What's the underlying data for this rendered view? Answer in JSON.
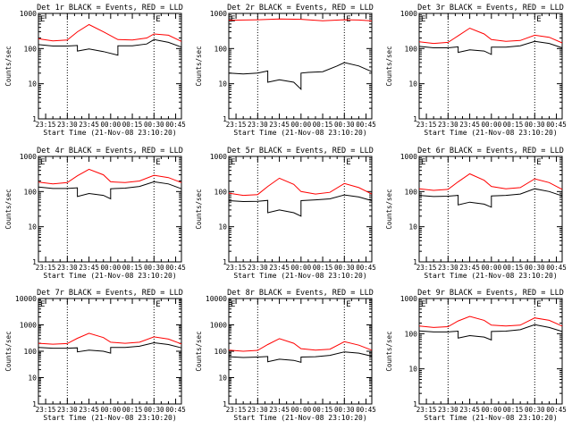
{
  "colors": {
    "events": "#000000",
    "lld": "#ff0000",
    "axes": "#000000",
    "background": "#ffffff"
  },
  "chart_data": [
    {
      "type": "line",
      "title": "Det 1r BLACK = Events, RED = LLD",
      "xlabel": "Start Time (21-Nov-08 23:10:20)",
      "ylabel": "Counts/sec",
      "yscale": "log",
      "ylim": [
        1,
        1000
      ],
      "ytick_labels": [
        "1",
        "10",
        "100",
        "1000"
      ],
      "xlim": [
        "23:10",
        "00:49"
      ],
      "xtick_labels": [
        "23:15",
        "23:30",
        "23:45",
        "00:00",
        "00:15",
        "00:30",
        "00:45"
      ],
      "markers": [
        {
          "time": "23:10",
          "label": "E"
        },
        {
          "time": "00:30",
          "label": "E"
        }
      ],
      "dotted_lines": [
        "23:30",
        "00:30"
      ],
      "series": [
        {
          "name": "Events",
          "x": [
            "23:10",
            "23:20",
            "23:30",
            "23:37",
            "23:37",
            "23:45",
            "23:55",
            "00:05",
            "00:05",
            "00:15",
            "00:25",
            "00:30",
            "00:40",
            "00:49"
          ],
          "y": [
            130,
            118,
            118,
            122,
            85,
            98,
            82,
            65,
            120,
            120,
            135,
            180,
            150,
            110
          ]
        },
        {
          "name": "LLD",
          "x": [
            "23:10",
            "23:20",
            "23:30",
            "23:37",
            "23:45",
            "23:55",
            "00:05",
            "00:15",
            "00:25",
            "00:30",
            "00:40",
            "00:49"
          ],
          "y": [
            190,
            165,
            175,
            300,
            480,
            300,
            180,
            175,
            200,
            260,
            240,
            160
          ]
        }
      ]
    },
    {
      "type": "line",
      "title": "Det 2r BLACK = Events, RED = LLD",
      "xlabel": "Start Time (21-Nov-08 23:10:20)",
      "ylabel": "Counts/sec",
      "yscale": "log",
      "ylim": [
        1,
        1000
      ],
      "ytick_labels": [
        "1",
        "10",
        "100",
        "1000"
      ],
      "xlim": [
        "23:10",
        "00:49"
      ],
      "xtick_labels": [
        "23:15",
        "23:30",
        "23:45",
        "00:00",
        "00:15",
        "00:30",
        "00:45"
      ],
      "markers": [
        {
          "time": "23:10",
          "label": "E"
        },
        {
          "time": "00:30",
          "label": "E"
        }
      ],
      "dotted_lines": [
        "23:30",
        "00:30"
      ],
      "series": [
        {
          "name": "Events",
          "x": [
            "23:10",
            "23:20",
            "23:30",
            "23:37",
            "23:37",
            "23:45",
            "23:55",
            "00:00",
            "00:00",
            "00:05",
            "00:15",
            "00:25",
            "00:30",
            "00:40",
            "00:49"
          ],
          "y": [
            20,
            19,
            20,
            23,
            11,
            13,
            11,
            7,
            20,
            21,
            22,
            32,
            40,
            32,
            22
          ]
        },
        {
          "name": "LLD",
          "x": [
            "23:10",
            "23:20",
            "23:30",
            "23:45",
            "00:00",
            "00:15",
            "00:30",
            "00:40",
            "00:49"
          ],
          "y": [
            640,
            650,
            660,
            690,
            680,
            620,
            660,
            650,
            610
          ]
        }
      ]
    },
    {
      "type": "line",
      "title": "Det 3r BLACK = Events, RED = LLD",
      "xlabel": "Start Time (21-Nov-08 23:10:20)",
      "ylabel": "Counts/sec",
      "yscale": "log",
      "ylim": [
        1,
        1000
      ],
      "ytick_labels": [
        "1",
        "10",
        "100",
        "1000"
      ],
      "xlim": [
        "23:10",
        "00:49"
      ],
      "xtick_labels": [
        "23:15",
        "23:30",
        "23:45",
        "00:00",
        "00:15",
        "00:30",
        "00:45"
      ],
      "markers": [
        {
          "time": "23:10",
          "label": "E"
        },
        {
          "time": "00:30",
          "label": "E"
        }
      ],
      "dotted_lines": [
        "23:30",
        "00:30"
      ],
      "series": [
        {
          "name": "Events",
          "x": [
            "23:10",
            "23:20",
            "23:30",
            "23:37",
            "23:37",
            "23:45",
            "23:55",
            "00:00",
            "00:00",
            "00:10",
            "00:20",
            "00:30",
            "00:40",
            "00:49"
          ],
          "y": [
            115,
            105,
            105,
            112,
            78,
            92,
            85,
            68,
            110,
            110,
            120,
            160,
            140,
            105
          ]
        },
        {
          "name": "LLD",
          "x": [
            "23:10",
            "23:20",
            "23:30",
            "23:37",
            "23:45",
            "23:55",
            "00:00",
            "00:10",
            "00:20",
            "00:30",
            "00:40",
            "00:49"
          ],
          "y": [
            155,
            140,
            150,
            230,
            380,
            260,
            180,
            160,
            170,
            240,
            210,
            145
          ]
        }
      ]
    },
    {
      "type": "line",
      "title": "Det 4r BLACK = Events, RED = LLD",
      "xlabel": "Start Time (21-Nov-08 23:10:20)",
      "ylabel": "Counts/sec",
      "yscale": "log",
      "ylim": [
        1,
        1000
      ],
      "ytick_labels": [
        "1",
        "10",
        "100",
        "1000"
      ],
      "xlim": [
        "23:10",
        "00:49"
      ],
      "xtick_labels": [
        "23:15",
        "23:30",
        "23:45",
        "00:00",
        "00:15",
        "00:30",
        "00:45"
      ],
      "markers": [
        {
          "time": "23:10",
          "label": "E"
        },
        {
          "time": "00:30",
          "label": "E"
        }
      ],
      "dotted_lines": [
        "23:30",
        "00:30"
      ],
      "series": [
        {
          "name": "Events",
          "x": [
            "23:10",
            "23:20",
            "23:30",
            "23:37",
            "23:37",
            "23:45",
            "23:55",
            "00:00",
            "00:00",
            "00:10",
            "00:20",
            "00:30",
            "00:40",
            "00:49"
          ],
          "y": [
            135,
            122,
            122,
            128,
            72,
            88,
            78,
            62,
            120,
            125,
            140,
            190,
            165,
            120
          ]
        },
        {
          "name": "LLD",
          "x": [
            "23:10",
            "23:20",
            "23:30",
            "23:37",
            "23:45",
            "23:55",
            "00:00",
            "00:10",
            "00:20",
            "00:30",
            "00:40",
            "00:49"
          ],
          "y": [
            185,
            165,
            180,
            280,
            430,
            300,
            190,
            180,
            200,
            290,
            250,
            180
          ]
        }
      ]
    },
    {
      "type": "line",
      "title": "Det 5r BLACK = Events, RED = LLD",
      "xlabel": "Start Time (21-Nov-08 23:10:20)",
      "ylabel": "Counts/sec",
      "yscale": "log",
      "ylim": [
        1,
        1000
      ],
      "ytick_labels": [
        "1",
        "10",
        "100",
        "1000"
      ],
      "xlim": [
        "23:10",
        "00:49"
      ],
      "xtick_labels": [
        "23:15",
        "23:30",
        "23:45",
        "00:00",
        "00:15",
        "00:30",
        "00:45"
      ],
      "markers": [
        {
          "time": "23:10",
          "label": "E"
        },
        {
          "time": "00:30",
          "label": "E"
        }
      ],
      "dotted_lines": [
        "23:30",
        "00:30"
      ],
      "series": [
        {
          "name": "Events",
          "x": [
            "23:10",
            "23:20",
            "23:30",
            "23:37",
            "23:37",
            "23:45",
            "23:55",
            "00:00",
            "00:00",
            "00:10",
            "00:20",
            "00:30",
            "00:40",
            "00:49"
          ],
          "y": [
            55,
            52,
            53,
            56,
            25,
            30,
            25,
            20,
            55,
            58,
            62,
            80,
            70,
            55
          ]
        },
        {
          "name": "LLD",
          "x": [
            "23:10",
            "23:20",
            "23:30",
            "23:37",
            "23:45",
            "23:55",
            "00:00",
            "00:10",
            "00:20",
            "00:30",
            "00:40",
            "00:49"
          ],
          "y": [
            90,
            78,
            82,
            140,
            240,
            160,
            100,
            85,
            95,
            170,
            130,
            85
          ]
        }
      ]
    },
    {
      "type": "line",
      "title": "Det 6r BLACK = Events, RED = LLD",
      "xlabel": "Start Time (21-Nov-08 23:10:20)",
      "ylabel": "Counts/sec",
      "yscale": "log",
      "ylim": [
        1,
        1000
      ],
      "ytick_labels": [
        "1",
        "10",
        "100",
        "1000"
      ],
      "xlim": [
        "23:10",
        "00:49"
      ],
      "xtick_labels": [
        "23:15",
        "23:30",
        "23:45",
        "00:00",
        "00:15",
        "00:30",
        "00:45"
      ],
      "markers": [
        {
          "time": "23:10",
          "label": "E"
        },
        {
          "time": "00:30",
          "label": "E"
        }
      ],
      "dotted_lines": [
        "23:30",
        "00:30"
      ],
      "series": [
        {
          "name": "Events",
          "x": [
            "23:10",
            "23:20",
            "23:30",
            "23:37",
            "23:37",
            "23:45",
            "23:55",
            "00:00",
            "00:00",
            "00:10",
            "00:20",
            "00:30",
            "00:40",
            "00:49"
          ],
          "y": [
            78,
            72,
            74,
            78,
            42,
            50,
            44,
            36,
            75,
            78,
            85,
            120,
            100,
            75
          ]
        },
        {
          "name": "LLD",
          "x": [
            "23:10",
            "23:20",
            "23:30",
            "23:37",
            "23:45",
            "23:55",
            "00:00",
            "00:10",
            "00:20",
            "00:30",
            "00:40",
            "00:49"
          ],
          "y": [
            120,
            108,
            115,
            190,
            320,
            210,
            140,
            120,
            130,
            230,
            180,
            115
          ]
        }
      ]
    },
    {
      "type": "line",
      "title": "Det 7r BLACK = Events, RED = LLD",
      "xlabel": "Start Time (21-Nov-08 23:10:20)",
      "ylabel": "Counts/sec",
      "yscale": "log",
      "ylim": [
        1,
        10000
      ],
      "ytick_labels": [
        "1",
        "10",
        "100",
        "1000",
        "10000"
      ],
      "xlim": [
        "23:10",
        "00:49"
      ],
      "xtick_labels": [
        "23:15",
        "23:30",
        "23:45",
        "00:00",
        "00:15",
        "00:30",
        "00:45"
      ],
      "markers": [
        {
          "time": "23:10",
          "label": "E"
        },
        {
          "time": "00:30",
          "label": "E"
        }
      ],
      "dotted_lines": [
        "23:30",
        "00:30"
      ],
      "series": [
        {
          "name": "Events",
          "x": [
            "23:10",
            "23:20",
            "23:30",
            "23:37",
            "23:37",
            "23:45",
            "23:55",
            "00:00",
            "00:00",
            "00:10",
            "00:20",
            "00:30",
            "00:40",
            "00:49"
          ],
          "y": [
            140,
            130,
            130,
            135,
            95,
            110,
            100,
            85,
            140,
            140,
            155,
            210,
            180,
            135
          ]
        },
        {
          "name": "LLD",
          "x": [
            "23:10",
            "23:20",
            "23:30",
            "23:37",
            "23:45",
            "23:55",
            "00:00",
            "00:10",
            "00:20",
            "00:30",
            "00:40",
            "00:49"
          ],
          "y": [
            200,
            185,
            195,
            310,
            480,
            330,
            220,
            200,
            220,
            350,
            290,
            190
          ]
        }
      ]
    },
    {
      "type": "line",
      "title": "Det 8r BLACK = Events, RED = LLD",
      "xlabel": "Start Time (21-Nov-08 23:10:20)",
      "ylabel": "Counts/sec",
      "yscale": "log",
      "ylim": [
        1,
        10000
      ],
      "ytick_labels": [
        "1",
        "10",
        "100",
        "1000",
        "10000"
      ],
      "xlim": [
        "23:10",
        "00:49"
      ],
      "xtick_labels": [
        "23:15",
        "23:30",
        "23:45",
        "00:00",
        "00:15",
        "00:30",
        "00:45"
      ],
      "markers": [
        {
          "time": "23:10",
          "label": "E"
        },
        {
          "time": "00:30",
          "label": "E"
        }
      ],
      "dotted_lines": [
        "23:30",
        "00:30"
      ],
      "series": [
        {
          "name": "Events",
          "x": [
            "23:10",
            "23:20",
            "23:30",
            "23:37",
            "23:37",
            "23:45",
            "23:55",
            "00:00",
            "00:00",
            "00:10",
            "00:20",
            "00:30",
            "00:40",
            "00:49"
          ],
          "y": [
            62,
            58,
            60,
            63,
            40,
            50,
            45,
            38,
            60,
            62,
            70,
            95,
            85,
            65
          ]
        },
        {
          "name": "LLD",
          "x": [
            "23:10",
            "23:20",
            "23:30",
            "23:37",
            "23:45",
            "23:55",
            "00:00",
            "00:10",
            "00:20",
            "00:30",
            "00:40",
            "00:49"
          ],
          "y": [
            110,
            100,
            108,
            180,
            300,
            200,
            125,
            110,
            120,
            230,
            170,
            110
          ]
        }
      ]
    },
    {
      "type": "line",
      "title": "Det 9r BLACK = Events, RED = LLD",
      "xlabel": "Start Time (21-Nov-08 23:10:20)",
      "ylabel": "Counts/sec",
      "yscale": "log",
      "ylim": [
        1,
        1000
      ],
      "ytick_labels": [
        "1",
        "10",
        "100",
        "1000"
      ],
      "xlim": [
        "23:10",
        "00:49"
      ],
      "xtick_labels": [
        "23:15",
        "23:30",
        "23:45",
        "00:00",
        "00:15",
        "00:30",
        "00:45"
      ],
      "markers": [
        {
          "time": "23:10",
          "label": "E"
        },
        {
          "time": "00:30",
          "label": "E"
        }
      ],
      "dotted_lines": [
        "23:30",
        "00:30"
      ],
      "series": [
        {
          "name": "Events",
          "x": [
            "23:10",
            "23:20",
            "23:30",
            "23:37",
            "23:37",
            "23:45",
            "23:55",
            "00:00",
            "00:00",
            "00:10",
            "00:20",
            "00:30",
            "00:40",
            "00:49"
          ],
          "y": [
            120,
            112,
            112,
            118,
            75,
            88,
            80,
            66,
            115,
            118,
            130,
            180,
            150,
            115
          ]
        },
        {
          "name": "LLD",
          "x": [
            "23:10",
            "23:20",
            "23:30",
            "23:37",
            "23:45",
            "23:55",
            "00:00",
            "00:10",
            "00:20",
            "00:30",
            "00:40",
            "00:49"
          ],
          "y": [
            165,
            150,
            158,
            230,
            310,
            240,
            175,
            165,
            175,
            280,
            240,
            165
          ]
        }
      ]
    }
  ]
}
